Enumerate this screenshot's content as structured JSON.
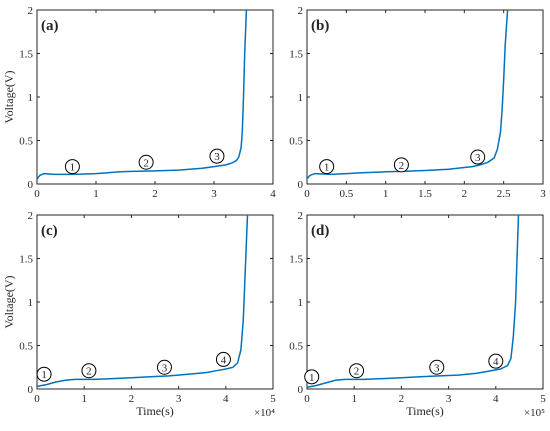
{
  "chart_data": [
    {
      "type": "line",
      "panel_label": "(a)",
      "ylabel": "Voltage(V)",
      "xlabel": "",
      "xlim": [
        0,
        4
      ],
      "ylim": [
        0,
        2
      ],
      "x_ticks": [
        "0",
        "1",
        "2",
        "3",
        "4"
      ],
      "y_ticks": [
        "0",
        "0.5",
        "1",
        "1.5",
        "2"
      ],
      "x_multiplier": "",
      "series": [
        {
          "x": [
            0,
            0.05,
            0.12,
            0.3,
            0.6,
            1.0,
            1.2,
            1.4,
            1.6,
            2.0,
            2.4,
            2.8,
            3.0,
            3.1,
            3.2,
            3.3,
            3.38,
            3.42,
            3.46,
            3.48,
            3.5,
            3.52,
            3.55
          ],
          "y": [
            0.06,
            0.1,
            0.12,
            0.11,
            0.11,
            0.12,
            0.13,
            0.14,
            0.145,
            0.15,
            0.16,
            0.18,
            0.2,
            0.21,
            0.22,
            0.24,
            0.27,
            0.31,
            0.42,
            0.6,
            1.0,
            1.5,
            2.0
          ]
        }
      ],
      "stages": [
        {
          "label": "1",
          "x": 0.6,
          "y": 0.2
        },
        {
          "label": "2",
          "x": 1.85,
          "y": 0.25
        },
        {
          "label": "3",
          "x": 3.05,
          "y": 0.32
        }
      ]
    },
    {
      "type": "line",
      "panel_label": "(b)",
      "ylabel": "",
      "xlabel": "",
      "xlim": [
        0,
        3
      ],
      "ylim": [
        0,
        2
      ],
      "x_ticks": [
        "0",
        "0.5",
        "1",
        "1.5",
        "2",
        "2.5",
        "3"
      ],
      "y_ticks": [
        "0",
        "0.5",
        "1",
        "1.5",
        "2"
      ],
      "x_multiplier": "",
      "series": [
        {
          "x": [
            0,
            0.04,
            0.1,
            0.3,
            0.5,
            0.7,
            1.0,
            1.2,
            1.5,
            1.8,
            2.0,
            2.1,
            2.2,
            2.3,
            2.38,
            2.42,
            2.46,
            2.48,
            2.5,
            2.52,
            2.55
          ],
          "y": [
            0.06,
            0.1,
            0.12,
            0.11,
            0.12,
            0.13,
            0.14,
            0.145,
            0.155,
            0.17,
            0.19,
            0.2,
            0.22,
            0.25,
            0.3,
            0.4,
            0.6,
            0.85,
            1.2,
            1.6,
            2.0
          ]
        }
      ],
      "stages": [
        {
          "label": "1",
          "x": 0.25,
          "y": 0.2
        },
        {
          "label": "2",
          "x": 1.2,
          "y": 0.22
        },
        {
          "label": "3",
          "x": 2.17,
          "y": 0.31
        }
      ]
    },
    {
      "type": "line",
      "panel_label": "(c)",
      "ylabel": "Voltage(V)",
      "xlabel": "Time(s)",
      "xlim": [
        0,
        5
      ],
      "ylim": [
        0,
        2
      ],
      "x_ticks": [
        "0",
        "1",
        "2",
        "3",
        "4",
        "5"
      ],
      "y_ticks": [
        "0",
        "0.5",
        "1",
        "1.5",
        "2"
      ],
      "x_multiplier": "×10⁴",
      "series": [
        {
          "x": [
            0,
            0.2,
            0.4,
            0.6,
            0.8,
            1.2,
            1.6,
            2.0,
            2.4,
            2.8,
            3.2,
            3.6,
            3.8,
            4.0,
            4.15,
            4.25,
            4.32,
            4.37,
            4.4,
            4.43,
            4.46
          ],
          "y": [
            0.03,
            0.05,
            0.08,
            0.1,
            0.11,
            0.11,
            0.12,
            0.13,
            0.14,
            0.15,
            0.17,
            0.19,
            0.21,
            0.23,
            0.25,
            0.3,
            0.45,
            0.8,
            1.2,
            1.6,
            2.0
          ]
        }
      ],
      "stages": [
        {
          "label": "1",
          "x": 0.15,
          "y": 0.17
        },
        {
          "label": "2",
          "x": 1.1,
          "y": 0.21
        },
        {
          "label": "3",
          "x": 2.7,
          "y": 0.25
        },
        {
          "label": "4",
          "x": 3.95,
          "y": 0.34
        }
      ]
    },
    {
      "type": "line",
      "panel_label": "(d)",
      "ylabel": "",
      "xlabel": "Time(s)",
      "xlim": [
        0,
        5
      ],
      "ylim": [
        0,
        2
      ],
      "x_ticks": [
        "0",
        "1",
        "2",
        "3",
        "4",
        "5"
      ],
      "y_ticks": [
        "0",
        "0.5",
        "1",
        "1.5",
        "2"
      ],
      "x_multiplier": "×10⁵",
      "series": [
        {
          "x": [
            0,
            0.2,
            0.4,
            0.6,
            0.8,
            1.2,
            1.6,
            2.0,
            2.4,
            2.8,
            3.2,
            3.6,
            3.9,
            4.1,
            4.25,
            4.32,
            4.37,
            4.42,
            4.45,
            4.48
          ],
          "y": [
            0.02,
            0.04,
            0.07,
            0.1,
            0.11,
            0.11,
            0.12,
            0.13,
            0.14,
            0.15,
            0.16,
            0.18,
            0.21,
            0.23,
            0.27,
            0.35,
            0.6,
            1.0,
            1.5,
            2.0
          ]
        }
      ],
      "stages": [
        {
          "label": "1",
          "x": 0.1,
          "y": 0.14
        },
        {
          "label": "2",
          "x": 1.05,
          "y": 0.21
        },
        {
          "label": "3",
          "x": 2.75,
          "y": 0.25
        },
        {
          "label": "4",
          "x": 4.0,
          "y": 0.32
        }
      ]
    }
  ],
  "colors": {
    "line": "#0072bd",
    "axis": "#262626"
  }
}
